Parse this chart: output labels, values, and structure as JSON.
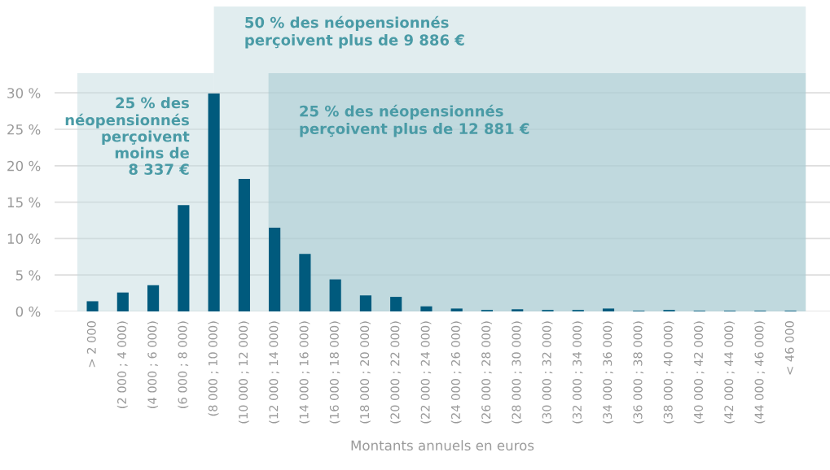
{
  "chart_data": {
    "type": "bar",
    "categories": [
      "> 2 000",
      "(2 000 ; 4 000)",
      "(4 000 ; 6 000)",
      "(6 000 ; 8 000)",
      "(8 000 ; 10 000)",
      "(10 000 ; 12 000)",
      "(12 000 ; 14 000)",
      "(14 000 ; 16 000)",
      "(16 000 ; 18 000)",
      "(18 000 ; 20 000)",
      "(20 000 ; 22 000)",
      "(22 000 ; 24 000)",
      "(24 000 ; 26 000)",
      "(26 000 ; 28 000)",
      "(28 000 ; 30 000)",
      "(30 000 ; 32 000)",
      "(32 000 ; 34 000)",
      "(34 000 ; 36 000)",
      "(36 000 ; 38 000)",
      "(38 000 ; 40 000)",
      "(40 000 ; 42 000)",
      "(42 000 ; 44 000)",
      "(44 000 ; 46 000)",
      "< 46 000"
    ],
    "values": [
      1.4,
      2.6,
      3.6,
      14.6,
      29.9,
      18.2,
      11.5,
      7.9,
      4.4,
      2.2,
      2.0,
      0.7,
      0.4,
      0.2,
      0.3,
      0.2,
      0.2,
      0.4,
      0.1,
      0.2,
      0.1,
      0.1,
      0.1,
      0.1
    ],
    "color": "#005a7d",
    "xlabel": "Montants annuels en euros",
    "ylim": [
      0,
      32.7
    ],
    "yticks": [
      {
        "value": 0,
        "label": "0 %"
      },
      {
        "value": 5,
        "label": "5 %"
      },
      {
        "value": 10,
        "label": "10 %"
      },
      {
        "value": 15,
        "label": "15 %"
      },
      {
        "value": 20,
        "label": "20 %"
      },
      {
        "value": 25,
        "label": "25 %"
      },
      {
        "value": 30,
        "label": "30 %"
      }
    ],
    "grid": "y",
    "bands": [
      {
        "axis": "x",
        "from": "> 2 000",
        "to": "(8 000 ; 10 000)",
        "label": "25 % des\nnéopensionnés\nperçoivent\nmoins de\n8 337 €",
        "color": "#c3dbe0"
      },
      {
        "axis": "x",
        "from": "(8 000 ; 10 000)",
        "to": "< 46 000",
        "label": "50 % des néopensionnés\nperçoivent plus de 9 886 €",
        "color": "#c3dbe0"
      },
      {
        "axis": "x",
        "from": "(12 000 ; 14 000)",
        "to": "< 46 000",
        "label": "25 % des néopensionnés\nperçoivent plus de 12 881 €",
        "color": "#9fc6ce"
      }
    ]
  }
}
